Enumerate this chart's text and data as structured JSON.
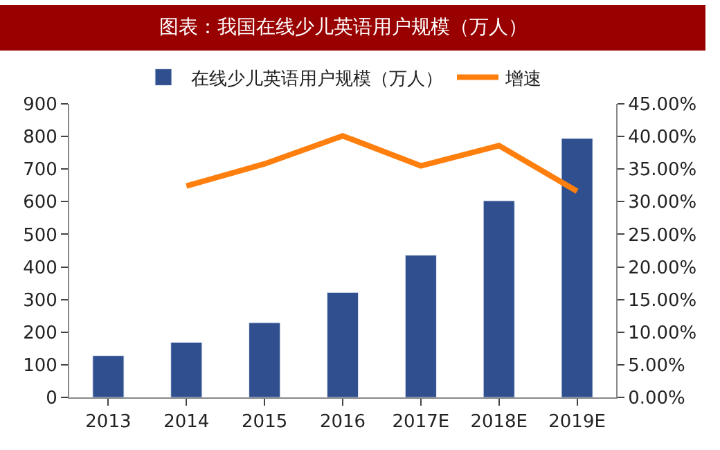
{
  "chart_data": {
    "type": "bar",
    "title": "图表：我国在线少儿英语用户规模（万人）",
    "categories": [
      "2013",
      "2014",
      "2015",
      "2016",
      "2017E",
      "2018E",
      "2019E"
    ],
    "series": [
      {
        "name": "在线少儿英语用户规模（万人）",
        "color": "#2f4f8f",
        "values": [
          128,
          169,
          229,
          322,
          436,
          603,
          794
        ]
      },
      {
        "name": "增速",
        "type": "line",
        "axis": "y2",
        "color": "#ff7f0e",
        "values": [
          null,
          32.4,
          35.8,
          40.1,
          35.5,
          38.6,
          31.6
        ]
      }
    ],
    "ylim": [
      0,
      900
    ],
    "yticks": [
      0,
      100,
      200,
      300,
      400,
      500,
      600,
      700,
      800,
      900
    ],
    "y2lim": [
      0,
      45
    ],
    "y2ticks": [
      {
        "value": 0,
        "label": "0.00%"
      },
      {
        "value": 5,
        "label": "5.00%"
      },
      {
        "value": 10,
        "label": "10.00%"
      },
      {
        "value": 15,
        "label": "15.00%"
      },
      {
        "value": 20,
        "label": "20.00%"
      },
      {
        "value": 25,
        "label": "25.00%"
      },
      {
        "value": 30,
        "label": "30.00%"
      },
      {
        "value": 35,
        "label": "35.00%"
      },
      {
        "value": 40,
        "label": "40.00%"
      },
      {
        "value": 45,
        "label": "45.00%"
      }
    ],
    "legend": "top",
    "marker": "none"
  }
}
